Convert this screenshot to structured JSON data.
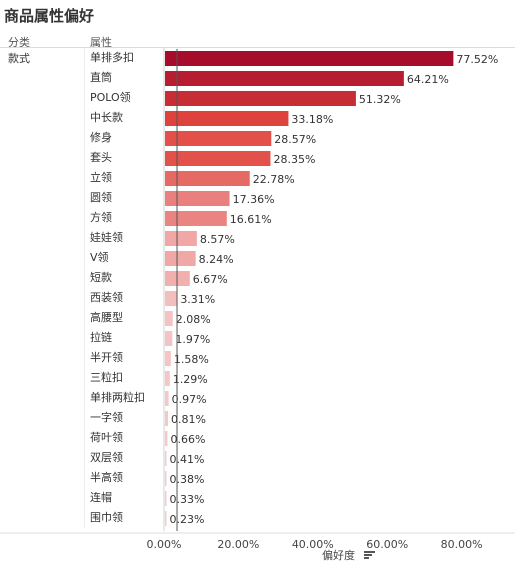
{
  "page": {
    "title": "商品属性偏好"
  },
  "headers": {
    "category": "分类",
    "attribute": "属性"
  },
  "axis": {
    "title": "偏好度",
    "sort_icon": "sort-descending-icon"
  },
  "chart_data": {
    "type": "bar",
    "orientation": "horizontal",
    "title": "商品属性偏好",
    "xlabel": "偏好度",
    "group": "款式",
    "categories": [
      "单排多扣",
      "直筒",
      "POLO领",
      "中长款",
      "修身",
      "套头",
      "立领",
      "圆领",
      "方领",
      "娃娃领",
      "V领",
      "短款",
      "西装领",
      "高腰型",
      "拉链",
      "半开领",
      "三粒扣",
      "单排两粒扣",
      "一字领",
      "荷叶领",
      "双层领",
      "半高领",
      "连帽",
      "围巾领"
    ],
    "values": [
      77.52,
      64.21,
      51.32,
      33.18,
      28.57,
      28.35,
      22.78,
      17.36,
      16.61,
      8.57,
      8.24,
      6.67,
      3.31,
      2.08,
      1.97,
      1.58,
      1.29,
      0.97,
      0.81,
      0.66,
      0.41,
      0.38,
      0.33,
      0.23
    ],
    "value_labels": [
      "77.52%",
      "64.21%",
      "51.32%",
      "33.18%",
      "28.57%",
      "28.35%",
      "22.78%",
      "17.36%",
      "16.61%",
      "8.57%",
      "8.24%",
      "6.67%",
      "3.31%",
      "2.08%",
      "1.97%",
      "1.58%",
      "1.29%",
      "0.97%",
      "0.81%",
      "0.66%",
      "0.41%",
      "0.38%",
      "0.33%",
      "0.23%"
    ],
    "xlim": [
      0,
      80
    ],
    "xticks": [
      0,
      20,
      40,
      60,
      80
    ],
    "xtick_labels": [
      "0.00%",
      "20.00%",
      "40.00%",
      "60.00%",
      "80.00%"
    ],
    "reference_line": 3.5,
    "color_scale": {
      "high": "#a50d2a",
      "mid": "#e0453e",
      "low": "#f6cccc"
    },
    "grid": false,
    "legend": "none"
  }
}
